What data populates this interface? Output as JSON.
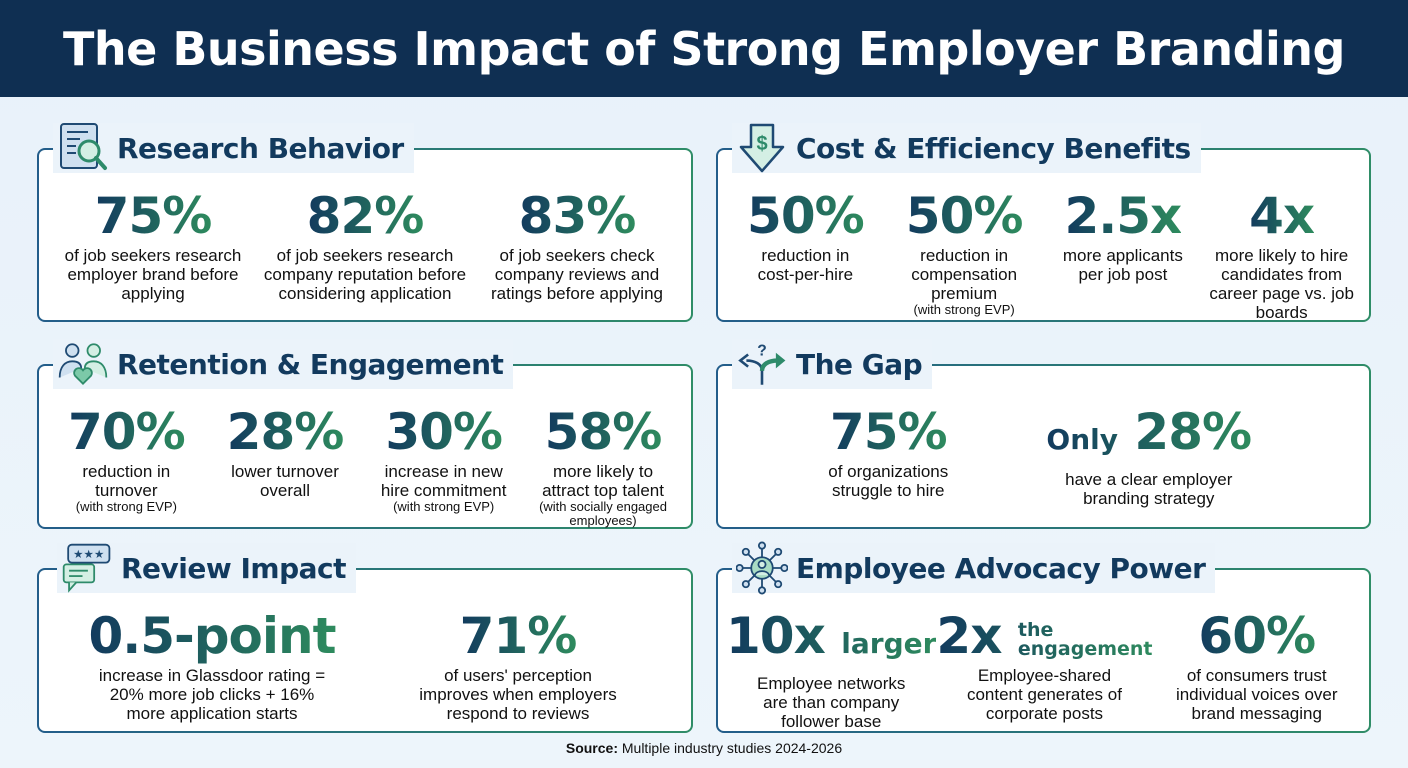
{
  "title": "The Business Impact of Strong Employer Branding",
  "colors": {
    "header": "#0f2f52",
    "navy": "#123a5e",
    "green": "#2e8b5e"
  },
  "sections": [
    {
      "title": "Research Behavior",
      "icon": "document-search-icon",
      "stats": [
        {
          "value": "75%",
          "desc": "of job seekers research employer brand before applying"
        },
        {
          "value": "82%",
          "desc": "of job seekers research company reputation before considering application"
        },
        {
          "value": "83%",
          "desc": "of job seekers check company reviews and ratings before applying"
        }
      ]
    },
    {
      "title": "Cost & Efficiency Benefits",
      "icon": "dollar-down-arrow-icon",
      "stats": [
        {
          "value": "50%",
          "desc": "reduction in cost-per-hire"
        },
        {
          "value": "50%",
          "desc": "reduction in compensation premium",
          "note": "(with strong EVP)"
        },
        {
          "value": "2.5x",
          "desc": "more applicants per job post"
        },
        {
          "value": "4x",
          "desc": "more likely to hire candidates from career page vs. job boards"
        }
      ]
    },
    {
      "title": "Retention & Engagement",
      "icon": "people-heart-icon",
      "stats": [
        {
          "value": "70%",
          "desc": "reduction in turnover",
          "note": "(with strong EVP)"
        },
        {
          "value": "28%",
          "desc": "lower turnover overall"
        },
        {
          "value": "30%",
          "desc": "increase in new hire commitment",
          "note": "(with strong EVP)"
        },
        {
          "value": "58%",
          "desc": "more likely to attract top talent",
          "note": "(with socially engaged employees)"
        }
      ]
    },
    {
      "title": "The Gap",
      "icon": "split-arrows-question-icon",
      "stats": [
        {
          "value": "75%",
          "desc": "of organizations struggle to hire"
        },
        {
          "prefix": "Only",
          "value": "28%",
          "desc": "have a clear employer branding strategy"
        }
      ]
    },
    {
      "title": "Review Impact",
      "icon": "rating-chat-icon",
      "stats": [
        {
          "value": "0.5-point",
          "desc": "increase in Glassdoor rating = 20% more job clicks + 16% more application starts"
        },
        {
          "value": "71%",
          "desc": "of users' perception improves when employers respond to reviews"
        }
      ]
    },
    {
      "title": "Employee Advocacy Power",
      "icon": "network-person-icon",
      "stats": [
        {
          "value": "10x",
          "suffix": "larger",
          "desc": "Employee networks are than company follower base"
        },
        {
          "value": "2x",
          "suffix_line1": "the",
          "suffix_line2": "engagement",
          "desc": "Employee-shared content generates of corporate posts"
        },
        {
          "value": "60%",
          "desc": "of consumers trust individual voices over brand messaging"
        }
      ]
    }
  ],
  "source": {
    "label": "Source:",
    "text": "Multiple industry studies 2024-2026"
  }
}
